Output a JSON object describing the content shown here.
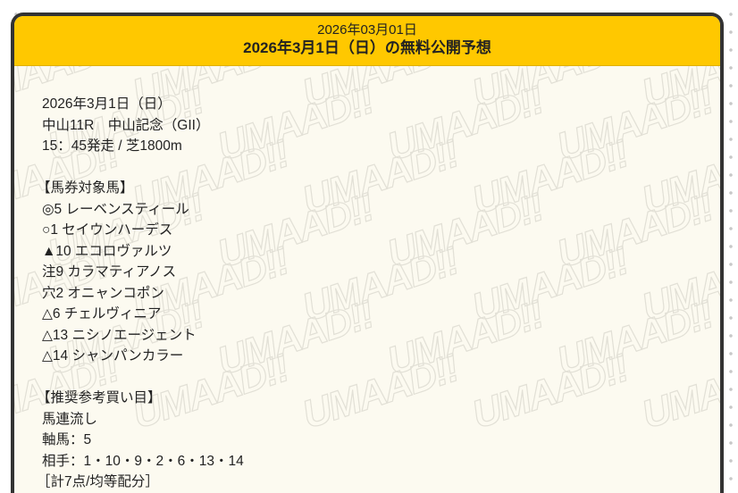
{
  "header": {
    "date": "2026年03月01日",
    "title": "2026年3月1日（日）の無料公開予想"
  },
  "watermark": "UMAAD!!",
  "race": {
    "date": "2026年3月1日（日）",
    "name": "中山11R　中山記念（GII）",
    "start": "15：45発走 / 芝1800m"
  },
  "horses": {
    "heading": "【馬券対象馬】",
    "items": [
      "◎5 レーベンスティール",
      "○1 セイウンハーデス",
      "▲10 エコロヴァルツ",
      "注9 カラマティアノス",
      "穴2 オニャンコポン",
      "△6 チェルヴィニア",
      "△13 ニシノエージェント",
      "△14 シャンパンカラー"
    ]
  },
  "bets": {
    "heading": "【推奨参考買い目】",
    "type": "馬連流し",
    "axis": "軸馬：5",
    "partners": "相手：1・10・9・2・6・13・14",
    "summary": "［計7点/均等配分］"
  }
}
